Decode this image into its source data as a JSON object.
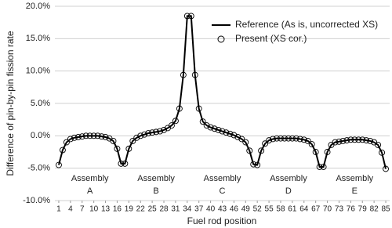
{
  "chart_data": {
    "type": "line",
    "x_label": "Fuel rod position",
    "y_label": "Difference of pin-by-pin fission rate",
    "x": [
      1,
      2,
      3,
      4,
      5,
      6,
      7,
      8,
      9,
      10,
      11,
      12,
      13,
      14,
      15,
      16,
      17,
      18,
      19,
      20,
      21,
      22,
      23,
      24,
      25,
      26,
      27,
      28,
      29,
      30,
      31,
      32,
      33,
      34,
      35,
      36,
      37,
      38,
      39,
      40,
      41,
      42,
      43,
      44,
      45,
      46,
      47,
      48,
      49,
      50,
      51,
      52,
      53,
      54,
      55,
      56,
      57,
      58,
      59,
      60,
      61,
      62,
      63,
      64,
      65,
      66,
      67,
      68,
      69,
      70,
      71,
      72,
      73,
      74,
      75,
      76,
      77,
      78,
      79,
      80,
      81,
      82,
      83,
      84,
      85
    ],
    "series": [
      {
        "name": "Reference (As is, uncorrected XS)",
        "color": "#000000",
        "style": "line",
        "values": [
          -4.5,
          -2.2,
          -1.0,
          -0.5,
          -0.3,
          -0.2,
          -0.1,
          0.0,
          0.0,
          0.0,
          0.0,
          -0.1,
          -0.2,
          -0.4,
          -0.8,
          -2.0,
          -4.3,
          -4.3,
          -2.0,
          -0.8,
          -0.3,
          0.0,
          0.2,
          0.4,
          0.5,
          0.6,
          0.7,
          0.9,
          1.2,
          1.6,
          2.3,
          4.2,
          9.4,
          18.5,
          18.5,
          9.4,
          4.2,
          2.2,
          1.6,
          1.3,
          1.1,
          0.9,
          0.7,
          0.5,
          0.3,
          0.1,
          -0.2,
          -0.5,
          -1.0,
          -2.3,
          -4.4,
          -4.5,
          -2.3,
          -1.2,
          -0.7,
          -0.5,
          -0.4,
          -0.4,
          -0.4,
          -0.4,
          -0.4,
          -0.4,
          -0.5,
          -0.6,
          -0.8,
          -1.3,
          -2.5,
          -4.8,
          -4.8,
          -2.5,
          -1.4,
          -1.0,
          -0.9,
          -0.8,
          -0.7,
          -0.6,
          -0.6,
          -0.6,
          -0.6,
          -0.7,
          -0.8,
          -1.0,
          -1.4,
          -2.6,
          -5.1
        ]
      },
      {
        "name": "Present (XS cor.)",
        "color": "#000000",
        "style": "marker",
        "values": [
          -4.5,
          -2.2,
          -1.0,
          -0.5,
          -0.3,
          -0.2,
          -0.1,
          0.0,
          0.0,
          0.0,
          0.0,
          -0.1,
          -0.2,
          -0.4,
          -0.8,
          -2.0,
          -4.3,
          -4.3,
          -2.0,
          -0.8,
          -0.3,
          0.0,
          0.2,
          0.4,
          0.5,
          0.6,
          0.7,
          0.9,
          1.2,
          1.6,
          2.3,
          4.2,
          9.4,
          18.5,
          18.5,
          9.4,
          4.2,
          2.2,
          1.6,
          1.3,
          1.1,
          0.9,
          0.7,
          0.5,
          0.3,
          0.1,
          -0.2,
          -0.5,
          -1.0,
          -2.3,
          -4.4,
          -4.5,
          -2.3,
          -1.2,
          -0.7,
          -0.5,
          -0.4,
          -0.4,
          -0.4,
          -0.4,
          -0.4,
          -0.4,
          -0.5,
          -0.6,
          -0.8,
          -1.3,
          -2.5,
          -4.8,
          -4.8,
          -2.5,
          -1.4,
          -1.0,
          -0.9,
          -0.8,
          -0.7,
          -0.6,
          -0.6,
          -0.6,
          -0.6,
          -0.7,
          -0.8,
          -1.0,
          -1.4,
          -2.6,
          -5.1
        ]
      }
    ],
    "annotations": [
      [
        "Assembly",
        "A"
      ],
      [
        "Assembly",
        "B"
      ],
      [
        "Assembly",
        "C"
      ],
      [
        "Assembly",
        "D"
      ],
      [
        "Assembly",
        "E"
      ]
    ],
    "xlim": [
      0,
      86
    ],
    "xticks": [
      1,
      4,
      7,
      10,
      13,
      16,
      19,
      22,
      25,
      28,
      31,
      34,
      37,
      40,
      43,
      46,
      49,
      52,
      55,
      58,
      61,
      64,
      67,
      70,
      73,
      76,
      79,
      82,
      85
    ],
    "ylim": [
      -10,
      20
    ],
    "yticks": [
      {
        "value": -10,
        "label": "-10.0%"
      },
      {
        "value": -5,
        "label": "-5.0%"
      },
      {
        "value": 0,
        "label": "0.0%"
      },
      {
        "value": 5,
        "label": "5.0%"
      },
      {
        "value": 10,
        "label": "10.0%"
      },
      {
        "value": 15,
        "label": "15.0%"
      },
      {
        "value": 20,
        "label": "20.0%"
      }
    ],
    "grid": true,
    "legend": "upper right"
  }
}
